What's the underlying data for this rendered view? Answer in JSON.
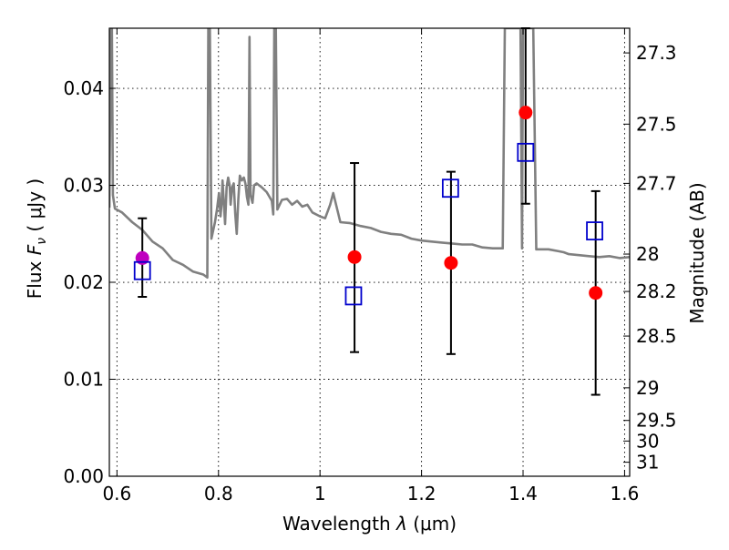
{
  "chart_data": {
    "type": "scatter",
    "xlabel": "Wavelength",
    "xlabel_symbol": "λ",
    "xlabel_unit": "(μm)",
    "ylabel": "Flux",
    "ylabel_symbol": "F",
    "ylabel_sub": "ν",
    "ylabel_unit": "( μJy )",
    "y2label": "Magnitude (AB)",
    "xlim": [
      0.585,
      1.61
    ],
    "ylim": [
      0.0,
      0.0462
    ],
    "grid": true,
    "x_ticks": [
      {
        "value": 0.6,
        "label": "0.6"
      },
      {
        "value": 0.8,
        "label": "0.8"
      },
      {
        "value": 1.0,
        "label": "1"
      },
      {
        "value": 1.2,
        "label": "1.2"
      },
      {
        "value": 1.4,
        "label": "1.4"
      },
      {
        "value": 1.6,
        "label": "1.6"
      }
    ],
    "y_ticks": [
      {
        "value": 0.0,
        "label": "0.00"
      },
      {
        "value": 0.01,
        "label": "0.01"
      },
      {
        "value": 0.02,
        "label": "0.02"
      },
      {
        "value": 0.03,
        "label": "0.03"
      },
      {
        "value": 0.04,
        "label": "0.04"
      }
    ],
    "y2_ticks": [
      {
        "value": 27.3,
        "label": "27.3"
      },
      {
        "value": 27.5,
        "label": "27.5"
      },
      {
        "value": 27.7,
        "label": "27.7"
      },
      {
        "value": 28.0,
        "label": "28"
      },
      {
        "value": 28.2,
        "label": "28.2"
      },
      {
        "value": 28.5,
        "label": "28.5"
      },
      {
        "value": 29.0,
        "label": "29"
      },
      {
        "value": 29.5,
        "label": "29.5"
      },
      {
        "value": 30.0,
        "label": "30"
      },
      {
        "value": 31.0,
        "label": "31"
      }
    ],
    "series": [
      {
        "marker": "filled-circle",
        "color": "#ff0000",
        "points": [
          {
            "x": 1.068,
            "y": 0.0226,
            "yerr_lo": 0.0128,
            "yerr_hi": 0.0323
          },
          {
            "x": 1.258,
            "y": 0.022,
            "yerr_lo": 0.0126,
            "yerr_hi": 0.0314
          },
          {
            "x": 1.405,
            "y": 0.0375,
            "yerr_lo": 0.0281,
            "yerr_hi": 0.0462
          },
          {
            "x": 1.543,
            "y": 0.0189,
            "yerr_lo": 0.0084,
            "yerr_hi": 0.0294
          }
        ]
      },
      {
        "marker": "filled-circle",
        "color": "#bf00bf",
        "points": [
          {
            "x": 0.65,
            "y": 0.0225,
            "yerr_lo": 0.0185,
            "yerr_hi": 0.0266
          }
        ]
      },
      {
        "marker": "open-square",
        "color": "#0000cc",
        "points": [
          {
            "x": 0.65,
            "y": 0.0212
          },
          {
            "x": 1.066,
            "y": 0.0186
          },
          {
            "x": 1.257,
            "y": 0.0297
          },
          {
            "x": 1.405,
            "y": 0.0334
          },
          {
            "x": 1.541,
            "y": 0.0253
          }
        ]
      },
      {
        "marker": "line",
        "color": "#808080",
        "points": [
          [
            0.585,
            0.0277
          ],
          [
            0.588,
            0.046
          ],
          [
            0.59,
            0.0462
          ],
          [
            0.592,
            0.029
          ],
          [
            0.596,
            0.0276
          ],
          [
            0.61,
            0.0272
          ],
          [
            0.63,
            0.0262
          ],
          [
            0.65,
            0.0254
          ],
          [
            0.67,
            0.0242
          ],
          [
            0.69,
            0.0235
          ],
          [
            0.71,
            0.0223
          ],
          [
            0.73,
            0.0218
          ],
          [
            0.75,
            0.0211
          ],
          [
            0.77,
            0.0208
          ],
          [
            0.778,
            0.0205
          ],
          [
            0.78,
            0.0462
          ],
          [
            0.783,
            0.0462
          ],
          [
            0.786,
            0.0245
          ],
          [
            0.793,
            0.0262
          ],
          [
            0.797,
            0.0275
          ],
          [
            0.801,
            0.0292
          ],
          [
            0.804,
            0.0268
          ],
          [
            0.806,
            0.028
          ],
          [
            0.808,
            0.0305
          ],
          [
            0.811,
            0.0278
          ],
          [
            0.813,
            0.026
          ],
          [
            0.816,
            0.0298
          ],
          [
            0.819,
            0.0308
          ],
          [
            0.822,
            0.03
          ],
          [
            0.824,
            0.028
          ],
          [
            0.827,
            0.0298
          ],
          [
            0.83,
            0.0302
          ],
          [
            0.833,
            0.027
          ],
          [
            0.836,
            0.025
          ],
          [
            0.839,
            0.0285
          ],
          [
            0.842,
            0.031
          ],
          [
            0.846,
            0.0305
          ],
          [
            0.85,
            0.0308
          ],
          [
            0.853,
            0.0302
          ],
          [
            0.856,
            0.0288
          ],
          [
            0.859,
            0.028
          ],
          [
            0.861,
            0.0453
          ],
          [
            0.863,
            0.029
          ],
          [
            0.867,
            0.0282
          ],
          [
            0.87,
            0.03
          ],
          [
            0.875,
            0.0302
          ],
          [
            0.885,
            0.0298
          ],
          [
            0.895,
            0.0293
          ],
          [
            0.905,
            0.0284
          ],
          [
            0.908,
            0.027
          ],
          [
            0.91,
            0.0462
          ],
          [
            0.913,
            0.0462
          ],
          [
            0.916,
            0.0275
          ],
          [
            0.925,
            0.0285
          ],
          [
            0.935,
            0.0286
          ],
          [
            0.945,
            0.028
          ],
          [
            0.955,
            0.0284
          ],
          [
            0.965,
            0.0278
          ],
          [
            0.975,
            0.028
          ],
          [
            0.985,
            0.0272
          ],
          [
            1.0,
            0.0268
          ],
          [
            1.01,
            0.0266
          ],
          [
            1.02,
            0.028
          ],
          [
            1.026,
            0.0292
          ],
          [
            1.04,
            0.0262
          ],
          [
            1.06,
            0.0261
          ],
          [
            1.08,
            0.0258
          ],
          [
            1.1,
            0.0256
          ],
          [
            1.12,
            0.0252
          ],
          [
            1.14,
            0.025
          ],
          [
            1.16,
            0.0249
          ],
          [
            1.18,
            0.0245
          ],
          [
            1.2,
            0.0243
          ],
          [
            1.22,
            0.0242
          ],
          [
            1.24,
            0.0241
          ],
          [
            1.26,
            0.024
          ],
          [
            1.28,
            0.0239
          ],
          [
            1.3,
            0.0239
          ],
          [
            1.32,
            0.0236
          ],
          [
            1.34,
            0.0235
          ],
          [
            1.36,
            0.0235
          ],
          [
            1.364,
            0.0462
          ],
          [
            1.368,
            0.0462
          ],
          [
            1.372,
            0.0462
          ],
          [
            1.385,
            0.0462
          ],
          [
            1.395,
            0.0462
          ],
          [
            1.398,
            0.0235
          ],
          [
            1.4,
            0.0462
          ],
          [
            1.42,
            0.0462
          ],
          [
            1.426,
            0.0234
          ],
          [
            1.45,
            0.0234
          ],
          [
            1.47,
            0.0232
          ],
          [
            1.48,
            0.0231
          ],
          [
            1.49,
            0.0229
          ],
          [
            1.51,
            0.0228
          ],
          [
            1.53,
            0.0227
          ],
          [
            1.55,
            0.0226
          ],
          [
            1.57,
            0.0227
          ],
          [
            1.59,
            0.0225
          ],
          [
            1.61,
            0.0226
          ]
        ]
      }
    ]
  }
}
